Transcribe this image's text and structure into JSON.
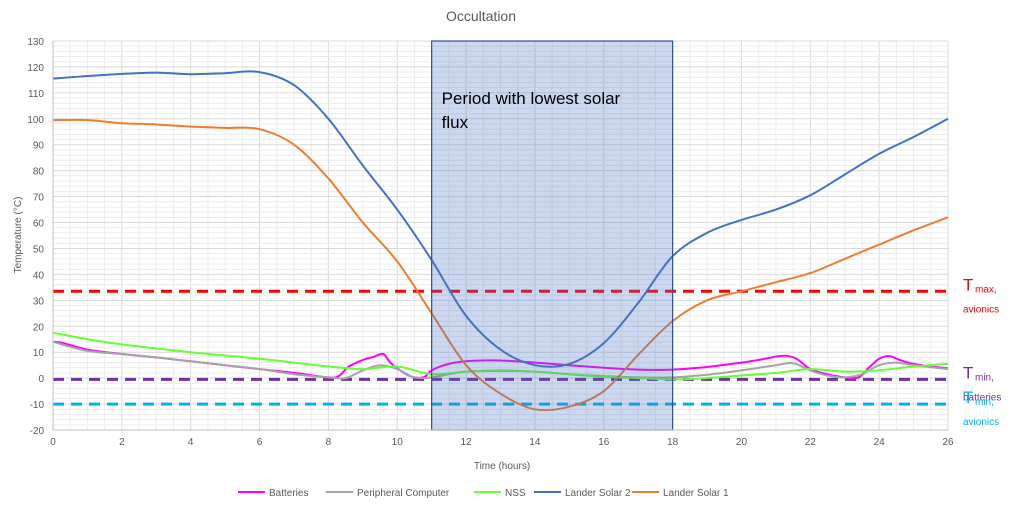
{
  "chart_data": {
    "type": "line",
    "title": "Occultation",
    "xlabel": "Time (hours)",
    "ylabel": "Temperature (°C)",
    "xlim": [
      0,
      26
    ],
    "ylim": [
      -20,
      130
    ],
    "xticks": [
      0,
      2,
      4,
      6,
      8,
      10,
      12,
      14,
      16,
      18,
      20,
      22,
      24,
      26
    ],
    "yticks": [
      -20,
      -10,
      0,
      10,
      20,
      30,
      40,
      50,
      60,
      70,
      80,
      90,
      100,
      110,
      120,
      130
    ],
    "grid": true,
    "legend_position": "bottom",
    "series": [
      {
        "name": "Batteries",
        "color": "#ff00ff",
        "x": [
          0,
          0.3,
          1,
          2,
          3,
          4,
          5,
          6,
          7,
          8,
          8.3,
          8.6,
          9,
          9.3,
          9.6,
          9.8,
          10.2,
          10.5,
          10.8,
          11,
          11.5,
          12,
          12.5,
          13,
          14,
          15,
          16,
          17,
          18,
          19,
          20,
          20.5,
          21,
          21.3,
          21.6,
          22,
          22.5,
          23,
          23.4,
          23.7,
          24,
          24.3,
          24.6,
          25,
          25.5,
          26
        ],
        "y": [
          14,
          13.5,
          11,
          9.3,
          8,
          6.5,
          5,
          3.5,
          2,
          0.3,
          0.8,
          4.5,
          7,
          8.2,
          9.3,
          6,
          2,
          0.3,
          0.5,
          3,
          5.5,
          6.5,
          6.8,
          6.8,
          6,
          5,
          4,
          3.3,
          3.3,
          4.3,
          6,
          7,
          8.3,
          8.6,
          7.5,
          3.5,
          1.5,
          0.3,
          0.3,
          4,
          7.5,
          8.5,
          7,
          5.5,
          4.5,
          3.8
        ]
      },
      {
        "name": "Peripheral Computer",
        "color": "#a5a5a5",
        "x": [
          0,
          1,
          2,
          3,
          4,
          5,
          6,
          7,
          8,
          8.5,
          9,
          9.5,
          10,
          10.5,
          11,
          11.5,
          12,
          13,
          14,
          15,
          16,
          17,
          18,
          19,
          20,
          21,
          21.5,
          22,
          22.5,
          23,
          23.5,
          24,
          24.5,
          25,
          26
        ],
        "y": [
          14,
          10.5,
          9.3,
          8,
          6.5,
          5,
          3.5,
          1.5,
          0.3,
          0,
          3,
          5,
          3.5,
          0.3,
          0.3,
          1.5,
          2.5,
          2.8,
          2.5,
          1.5,
          0.8,
          0.3,
          0.3,
          1.3,
          3,
          5,
          5.8,
          3,
          1,
          0.3,
          1.5,
          5,
          6,
          5,
          3.5
        ]
      },
      {
        "name": "NSS",
        "color": "#66ff33",
        "x": [
          0,
          1,
          2,
          4,
          6,
          7,
          8,
          9,
          10,
          11,
          12,
          13,
          14,
          15,
          16,
          17,
          18,
          19,
          20,
          21,
          22,
          23,
          24,
          25,
          26
        ],
        "y": [
          17.5,
          15,
          13,
          10,
          7.5,
          6,
          4.5,
          3.5,
          4.5,
          1.5,
          2.5,
          3,
          2.5,
          1.5,
          0.5,
          0,
          -0.5,
          0,
          1,
          2,
          3.5,
          2.5,
          3,
          4.5,
          5.5
        ]
      },
      {
        "name": "Lander Solar 2",
        "color": "#4472c4",
        "x": [
          0,
          1,
          2,
          3,
          4,
          5,
          6,
          7,
          8,
          9,
          10,
          11,
          12,
          13,
          14,
          15,
          16,
          17,
          18,
          19,
          20,
          21,
          22,
          23,
          24,
          25,
          26
        ],
        "y": [
          115.5,
          116.5,
          117.3,
          117.8,
          117.2,
          117.6,
          118,
          113,
          100,
          82,
          65,
          45.5,
          24,
          11,
          5,
          5.5,
          13.5,
          29,
          47,
          56,
          61,
          65,
          70.5,
          78.5,
          86.5,
          93,
          100
        ]
      },
      {
        "name": "Lander Solar 1",
        "color": "#ed7d31",
        "x": [
          0,
          1,
          2,
          3,
          4,
          5,
          6,
          7,
          8,
          9,
          10,
          11,
          12,
          13,
          14,
          15,
          16,
          17,
          18,
          19,
          20,
          21,
          22,
          23,
          24,
          25,
          26
        ],
        "y": [
          99.5,
          99.5,
          98.3,
          97.8,
          97,
          96.5,
          96,
          90,
          77,
          60,
          45,
          25,
          5,
          -6,
          -12,
          -11,
          -5,
          9,
          22,
          30,
          33.5,
          37,
          40.5,
          46,
          51.5,
          57,
          62
        ]
      }
    ],
    "shaded_region": {
      "x": [
        11,
        18
      ],
      "label": "Period with lowest solar flux"
    },
    "thresholds": [
      {
        "y": 33.5,
        "color": "#ff0000",
        "main": "T",
        "sub": "max,",
        "sub2": "avionics"
      },
      {
        "y": -0.5,
        "color": "#7030a0",
        "main": "T",
        "sub": "min,",
        "sub2": "batteries"
      },
      {
        "y": -10,
        "color": "#00b0f0",
        "main": "T",
        "sub": "min,",
        "sub2": "avionics"
      }
    ]
  }
}
